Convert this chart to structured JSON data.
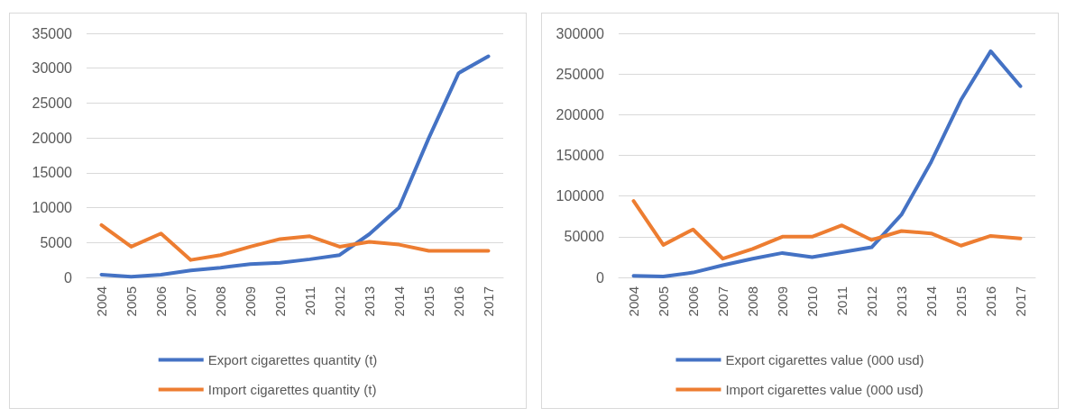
{
  "chart_data": [
    {
      "type": "line",
      "categories": [
        "2004",
        "2005",
        "2006",
        "2007",
        "2008",
        "2009",
        "2010",
        "2011",
        "2012",
        "2013",
        "2014",
        "2015",
        "2016",
        "2017"
      ],
      "series": [
        {
          "name": "Export cigarettes quantity (t)",
          "color": "#4472c4",
          "values": [
            400,
            100,
            400,
            1000,
            1400,
            1900,
            2100,
            2600,
            3200,
            6200,
            10000,
            20000,
            29300,
            31700
          ]
        },
        {
          "name": "Import cigarettes quantity (t)",
          "color": "#ed7d31",
          "values": [
            7500,
            4400,
            6300,
            2500,
            3200,
            4400,
            5500,
            5900,
            4400,
            5100,
            4700,
            3800,
            3800,
            3800
          ]
        }
      ],
      "ylim": [
        0,
        35000
      ],
      "yticks": [
        0,
        5000,
        10000,
        15000,
        20000,
        25000,
        30000,
        35000
      ],
      "grid": "y",
      "legend": "bottom",
      "marker": "none",
      "line_style": "solid"
    },
    {
      "type": "line",
      "categories": [
        "2004",
        "2005",
        "2006",
        "2007",
        "2008",
        "2009",
        "2010",
        "2011",
        "2012",
        "2013",
        "2014",
        "2015",
        "2016",
        "2017"
      ],
      "series": [
        {
          "name": "Export cigarettes value (000 usd)",
          "color": "#4472c4",
          "values": [
            2000,
            1000,
            6000,
            15000,
            23000,
            30000,
            25000,
            31000,
            37000,
            77000,
            142000,
            218000,
            278000,
            235000
          ]
        },
        {
          "name": "Import cigarettes value (000 usd)",
          "color": "#ed7d31",
          "values": [
            94000,
            40000,
            59000,
            23000,
            35000,
            50000,
            50000,
            64000,
            46000,
            57000,
            54000,
            39000,
            51000,
            48000
          ]
        }
      ],
      "ylim": [
        0,
        300000
      ],
      "yticks": [
        0,
        50000,
        100000,
        150000,
        200000,
        250000,
        300000
      ],
      "grid": "y",
      "legend": "bottom",
      "marker": "none",
      "line_style": "solid"
    }
  ]
}
